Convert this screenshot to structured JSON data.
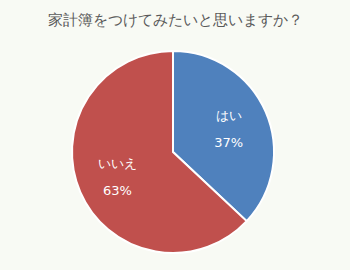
{
  "chart_data": {
    "type": "pie",
    "title": "家計簿をつけてみたいと思いますか？",
    "categories": [
      "はい",
      "いいえ"
    ],
    "values": [
      37,
      63
    ],
    "value_labels": [
      "37%",
      "63%"
    ],
    "colors": [
      "#4f81bd",
      "#c0504d"
    ],
    "data_labels": true
  }
}
